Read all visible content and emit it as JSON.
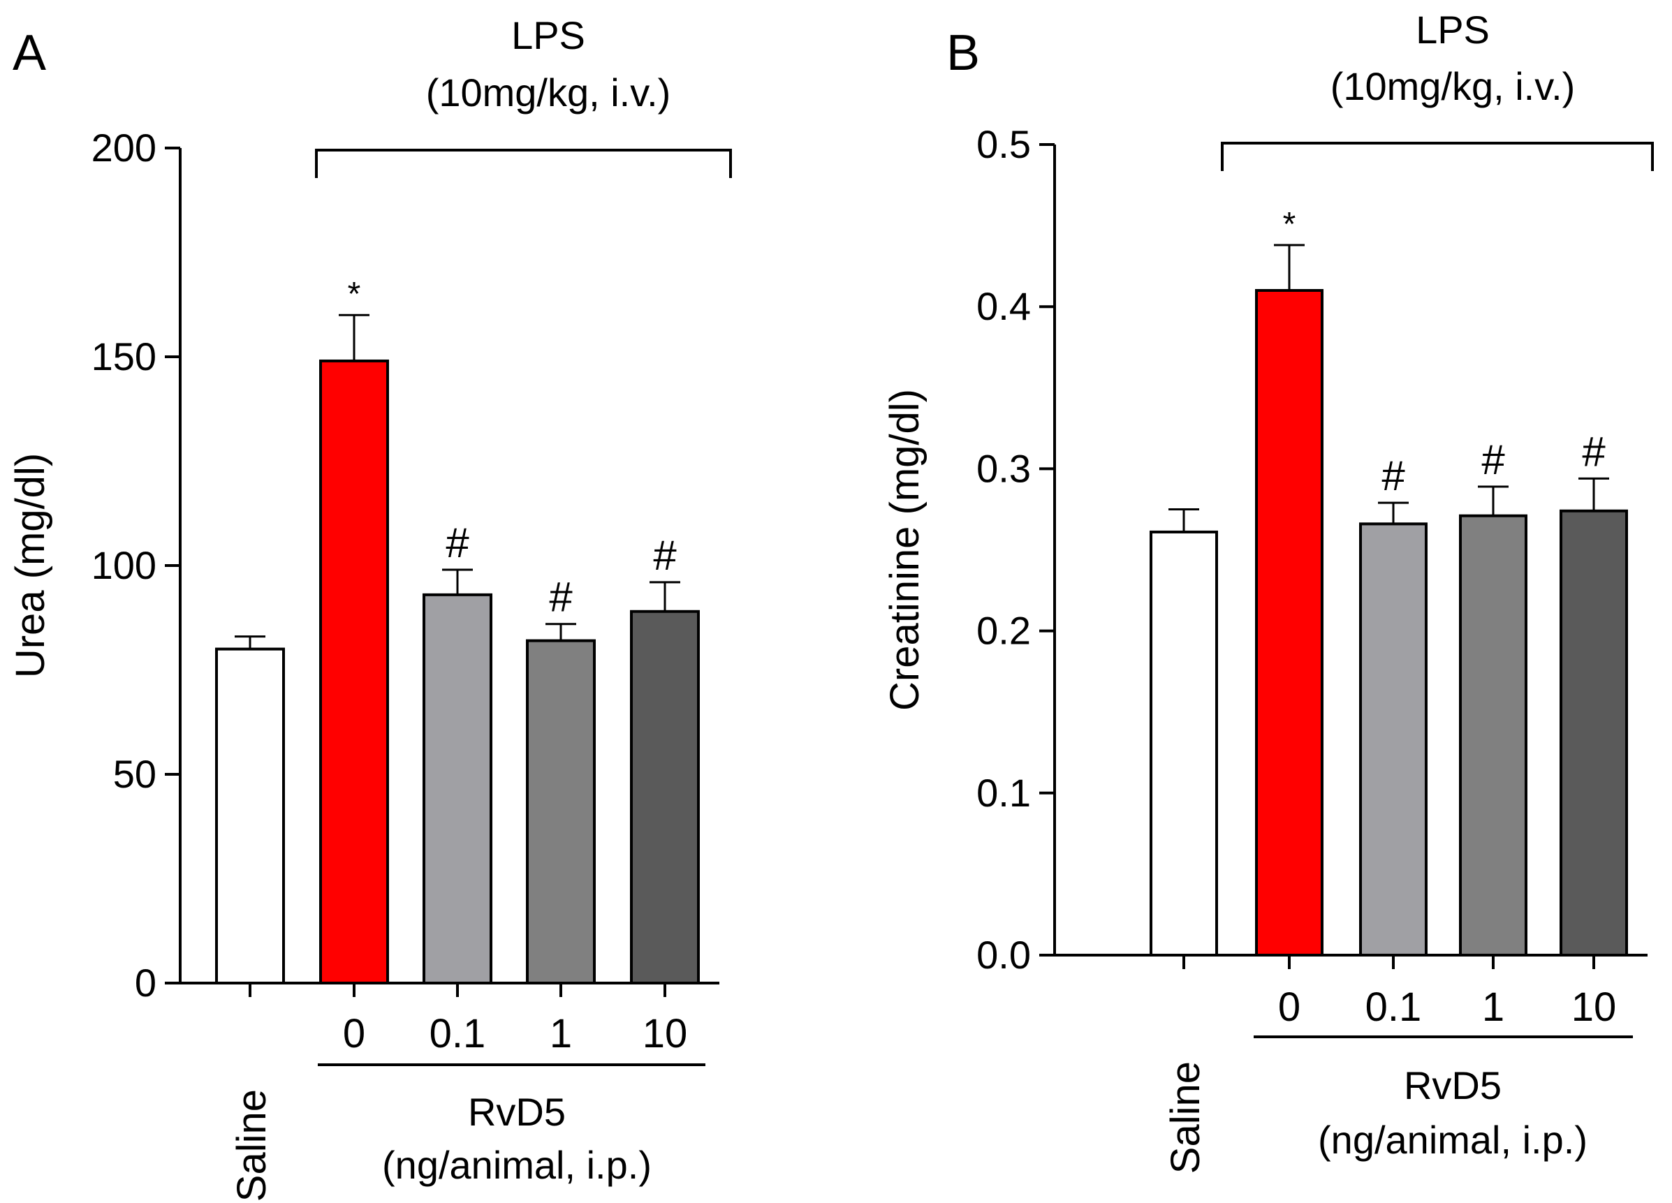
{
  "chart_data": [
    {
      "panel": "A",
      "type": "bar",
      "ylabel": "Urea (mg/dl)",
      "ylim": [
        0,
        200
      ],
      "yticks": [
        "0",
        "50",
        "100",
        "150",
        "200"
      ],
      "ytick_values": [
        0,
        50,
        100,
        150,
        200
      ],
      "categories": [
        "Saline",
        "0",
        "0.1",
        "1",
        "10"
      ],
      "values": [
        80,
        149,
        93,
        82,
        89
      ],
      "errors": [
        3,
        11,
        6,
        4,
        7
      ],
      "colors": [
        "#ffffff",
        "#ff0000",
        "#a0a0a4",
        "#808080",
        "#5a5a5a"
      ],
      "marks": [
        "",
        "*",
        "#",
        "#",
        "#"
      ],
      "bracket_top_label_line1": "LPS",
      "bracket_top_label_line2": "(10mg/kg, i.v.)",
      "group_label_line1": "RvD5",
      "group_label_line2": "(ng/animal, i.p.)"
    },
    {
      "panel": "B",
      "type": "bar",
      "ylabel": "Creatinine (mg/dl)",
      "ylim": [
        0,
        0.5
      ],
      "yticks": [
        "0.0",
        "0.1",
        "0.2",
        "0.3",
        "0.4",
        "0.5"
      ],
      "ytick_values": [
        0,
        0.1,
        0.2,
        0.3,
        0.4,
        0.5
      ],
      "categories": [
        "Saline",
        "0",
        "0.1",
        "1",
        "10"
      ],
      "values": [
        0.261,
        0.41,
        0.266,
        0.271,
        0.274
      ],
      "errors": [
        0.014,
        0.028,
        0.013,
        0.018,
        0.02
      ],
      "colors": [
        "#ffffff",
        "#ff0000",
        "#a0a0a4",
        "#808080",
        "#5a5a5a"
      ],
      "marks": [
        "",
        "*",
        "#",
        "#",
        "#"
      ],
      "bracket_top_label_line1": "LPS",
      "bracket_top_label_line2": "(10mg/kg, i.v.)",
      "group_label_line1": "RvD5",
      "group_label_line2": "(ng/animal, i.p.)"
    }
  ]
}
